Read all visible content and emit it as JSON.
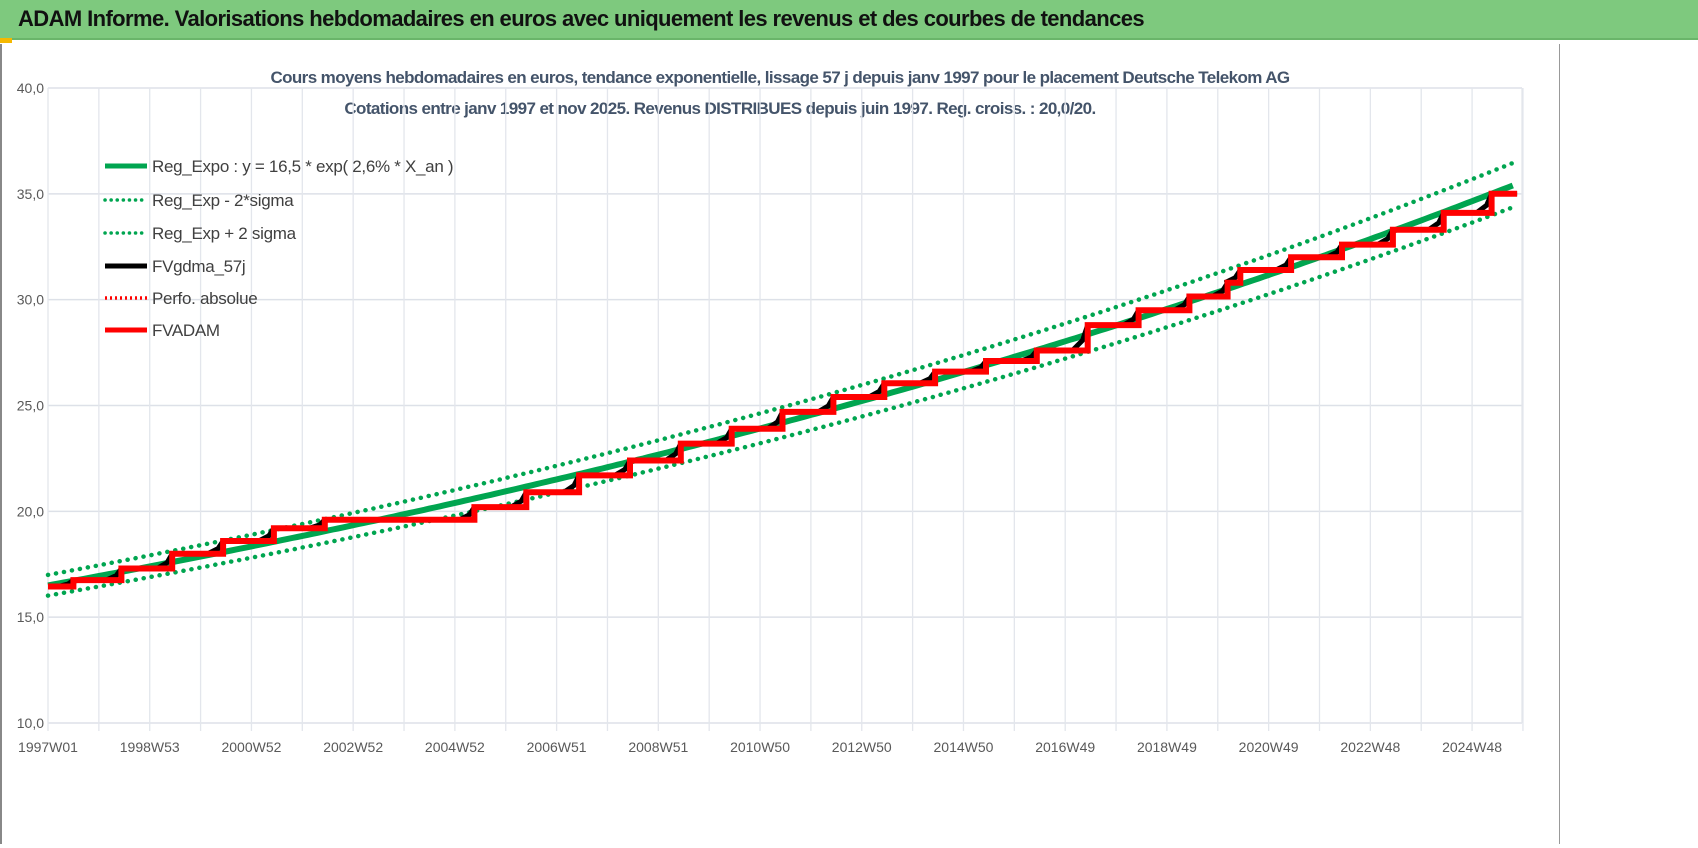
{
  "header": {
    "title": "ADAM Informe. Valorisations hebdomadaires en euros avec uniquement les revenus et des courbes de tendances"
  },
  "chart_data": {
    "type": "line",
    "title_lines": [
      "Cours moyens hebdomadaires en euros, tendance exponentielle, lissage 57 j depuis janv 1997  pour le placement Deutsche Telekom AG",
      "Cotations entre janv 1997 et nov 2025. Revenus DISTRIBUES depuis juin 1997. Reg. croiss. : 20,0/20."
    ],
    "x_tick_labels": [
      "1997W01",
      "1998W53",
      "2000W52",
      "2002W52",
      "2004W52",
      "2006W51",
      "2008W51",
      "2010W50",
      "2012W50",
      "2014W50",
      "2016W49",
      "2018W49",
      "2020W49",
      "2022W48",
      "2024W48"
    ],
    "x_range": [
      "1997W01",
      "2025W47"
    ],
    "y_tick_labels": [
      "10,0",
      "15,0",
      "20,0",
      "25,0",
      "30,0",
      "35,0",
      "40,0"
    ],
    "ylim": [
      10,
      40
    ],
    "grid": true,
    "legend_position": "top-left",
    "regression": {
      "a": 16.5,
      "growth_rate": 0.0265,
      "sigma_factor": 1.03
    },
    "series": [
      {
        "name": "Reg_Expo : y = 16,5 * exp( 2,6% *  X_an )",
        "color": "#00a550",
        "style": "solid"
      },
      {
        "name": "Reg_Exp - 2*sigma",
        "color": "#00a550",
        "style": "dotted"
      },
      {
        "name": "Reg_Exp + 2 sigma",
        "color": "#00a550",
        "style": "dotted"
      },
      {
        "name": "FVgdma_57j",
        "color": "#000000",
        "style": "solid"
      },
      {
        "name": "Perfo. absolue",
        "color": "#ff0000",
        "style": "dotted"
      },
      {
        "name": "FVADAM",
        "color": "#ff0000",
        "style": "solid",
        "steps": [
          [
            "1997W01",
            16.45
          ],
          [
            "1997W27",
            16.75
          ],
          [
            "1998W24",
            17.3
          ],
          [
            "1999W24",
            18.0
          ],
          [
            "2000W24",
            18.6
          ],
          [
            "2001W24",
            19.2
          ],
          [
            "2002W24",
            19.6
          ],
          [
            "2005W21",
            20.2
          ],
          [
            "2006W22",
            20.9
          ],
          [
            "2007W24",
            21.7
          ],
          [
            "2008W24",
            22.4
          ],
          [
            "2009W24",
            23.2
          ],
          [
            "2010W24",
            23.9
          ],
          [
            "2011W24",
            24.7
          ],
          [
            "2012W24",
            25.4
          ],
          [
            "2013W24",
            26.05
          ],
          [
            "2014W24",
            26.6
          ],
          [
            "2015W24",
            27.1
          ],
          [
            "2016W24",
            27.6
          ],
          [
            "2017W24",
            28.8
          ],
          [
            "2018W24",
            29.5
          ],
          [
            "2019W24",
            30.15
          ],
          [
            "2020W11",
            30.8
          ],
          [
            "2020W24",
            31.4
          ],
          [
            "2021W24",
            32.0
          ],
          [
            "2022W24",
            32.6
          ],
          [
            "2023W24",
            33.3
          ],
          [
            "2024W24",
            34.1
          ],
          [
            "2025W21",
            35.0
          ],
          [
            "2025W47",
            35.0
          ]
        ]
      }
    ]
  }
}
